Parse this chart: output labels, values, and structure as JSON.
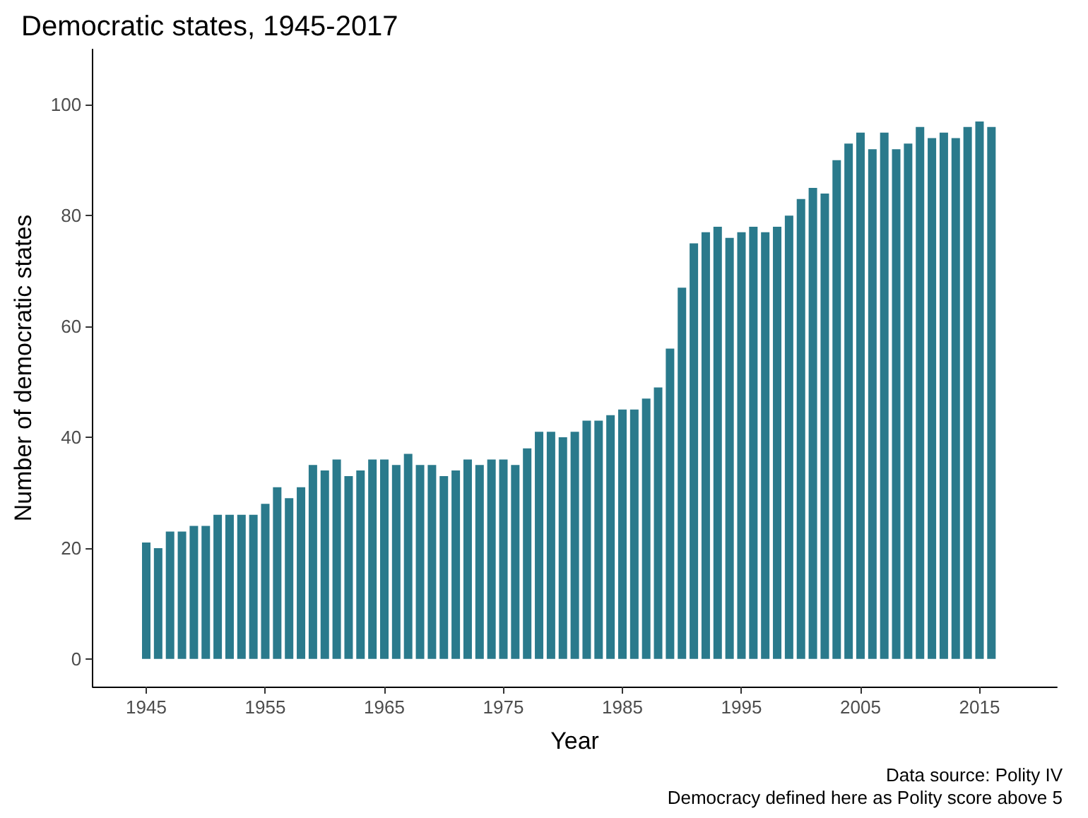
{
  "chart_data": {
    "type": "bar",
    "title": "Democratic states, 1945-2017",
    "xlabel": "Year",
    "ylabel": "Number of democratic states",
    "annotations": [
      "Data source: Polity IV",
      "Democracy defined here as Polity score above 5"
    ],
    "x": [
      1945,
      1946,
      1947,
      1948,
      1949,
      1950,
      1951,
      1952,
      1953,
      1954,
      1955,
      1956,
      1957,
      1958,
      1959,
      1960,
      1961,
      1962,
      1963,
      1964,
      1965,
      1966,
      1967,
      1968,
      1969,
      1970,
      1971,
      1972,
      1973,
      1974,
      1975,
      1976,
      1977,
      1978,
      1979,
      1980,
      1981,
      1982,
      1983,
      1984,
      1985,
      1986,
      1987,
      1988,
      1989,
      1990,
      1991,
      1992,
      1993,
      1994,
      1995,
      1996,
      1997,
      1998,
      1999,
      2000,
      2001,
      2002,
      2003,
      2004,
      2005,
      2006,
      2007,
      2008,
      2009,
      2010,
      2011,
      2012,
      2013,
      2014,
      2015,
      2016
    ],
    "values": [
      21,
      20,
      23,
      23,
      24,
      24,
      26,
      26,
      26,
      26,
      28,
      31,
      29,
      31,
      35,
      34,
      36,
      33,
      34,
      36,
      36,
      35,
      37,
      35,
      35,
      33,
      34,
      36,
      35,
      36,
      36,
      35,
      38,
      41,
      41,
      40,
      41,
      43,
      43,
      44,
      45,
      45,
      47,
      49,
      56,
      67,
      75,
      77,
      78,
      76,
      77,
      78,
      77,
      78,
      80,
      83,
      85,
      84,
      90,
      93,
      95,
      92,
      95,
      92,
      93,
      96,
      94,
      95,
      94,
      96,
      97,
      96
    ],
    "color": "#2a7a8c",
    "xlim": [
      1940.5,
      2021.5
    ],
    "xticks": [
      1945,
      1955,
      1965,
      1975,
      1985,
      1995,
      2005,
      2015
    ],
    "ylim": [
      -5,
      110
    ],
    "yticks": [
      0,
      20,
      40,
      60,
      80,
      100
    ],
    "grid": false
  }
}
